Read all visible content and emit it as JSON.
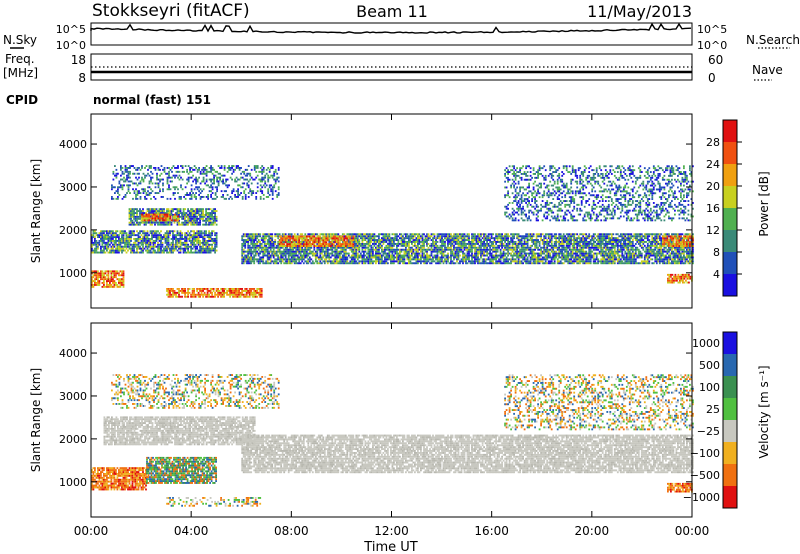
{
  "header": {
    "station": "Stokkseyri (fitACF)",
    "beam": "Beam 11",
    "date": "11/May/2013"
  },
  "top_panels": {
    "nsky_label": "N.Sky",
    "nsearch_label": "N.Search",
    "noise_ticks": [
      "10^5",
      "10^0"
    ],
    "freq_label": "Freq.",
    "freq_unit": "[MHz]",
    "freq_ticks": [
      "18",
      "8"
    ],
    "nave_label": "Nave",
    "nave_ticks": [
      "60",
      "0"
    ],
    "cpid_label": "CPID",
    "cpid_value": "normal (fast) 151"
  },
  "chart_data": [
    {
      "type": "heatmap",
      "panel": "power",
      "ylabel": "Slant Range [km]",
      "ylim": [
        180,
        4700
      ],
      "yticks": [
        1000,
        2000,
        3000,
        4000
      ],
      "xlim": [
        "00:00",
        "24:00"
      ],
      "colorbar": {
        "label": "Power [dB]",
        "ticks": [
          4,
          8,
          12,
          16,
          20,
          24,
          28
        ],
        "range": [
          0,
          32
        ],
        "colors": [
          "#1a10e0",
          "#2050b8",
          "#3a8a78",
          "#50b050",
          "#c8d020",
          "#f0a010",
          "#f05010",
          "#e01010"
        ]
      },
      "echo_regions": [
        {
          "start_h": 0.0,
          "end_h": 1.3,
          "r0": 650,
          "r1": 1050,
          "level": "high"
        },
        {
          "start_h": 0.0,
          "end_h": 5.0,
          "r0": 1450,
          "r1": 1950,
          "level": "mid"
        },
        {
          "start_h": 1.5,
          "end_h": 5.0,
          "r0": 2100,
          "r1": 2500,
          "level": "mid"
        },
        {
          "start_h": 2.0,
          "end_h": 3.5,
          "r0": 2200,
          "r1": 2350,
          "level": "high"
        },
        {
          "start_h": 3.0,
          "end_h": 6.8,
          "r0": 420,
          "r1": 620,
          "level": "high"
        },
        {
          "start_h": 6.0,
          "end_h": 24.0,
          "r0": 1200,
          "r1": 1900,
          "level": "mid"
        },
        {
          "start_h": 7.5,
          "end_h": 10.5,
          "r0": 1600,
          "r1": 1850,
          "level": "high"
        },
        {
          "start_h": 22.8,
          "end_h": 24.0,
          "r0": 1600,
          "r1": 1850,
          "level": "high"
        },
        {
          "start_h": 23.0,
          "end_h": 24.0,
          "r0": 750,
          "r1": 950,
          "level": "high"
        },
        {
          "start_h": 0.8,
          "end_h": 7.5,
          "r0": 2700,
          "r1": 3500,
          "level": "low"
        },
        {
          "start_h": 16.5,
          "end_h": 24.0,
          "r0": 2200,
          "r1": 3500,
          "level": "low"
        }
      ]
    },
    {
      "type": "heatmap",
      "panel": "velocity",
      "ylabel": "Slant Range [km]",
      "ylim": [
        180,
        4700
      ],
      "yticks": [
        1000,
        2000,
        3000,
        4000
      ],
      "xlim": [
        "00:00",
        "24:00"
      ],
      "xticks": [
        "00:00",
        "04:00",
        "08:00",
        "12:00",
        "16:00",
        "20:00",
        "00:00"
      ],
      "xlabel": "Time UT",
      "colorbar": {
        "label": "Velocity [m s⁻¹]",
        "ticks": [
          "1000",
          "500",
          "100",
          "25",
          "−25",
          "−100",
          "−500",
          "−1000"
        ],
        "colors": [
          "#1a10e0",
          "#2868b0",
          "#3a9050",
          "#50c040",
          "#c8c8c0",
          "#f0b020",
          "#f07010",
          "#e01010"
        ]
      },
      "echo_regions": [
        {
          "start_h": 0.0,
          "end_h": 2.2,
          "r0": 800,
          "r1": 1300,
          "level": "neg"
        },
        {
          "start_h": 2.2,
          "end_h": 5.0,
          "r0": 950,
          "r1": 1550,
          "level": "pos"
        },
        {
          "start_h": 0.5,
          "end_h": 6.5,
          "r0": 1850,
          "r1": 2500,
          "level": "grey"
        },
        {
          "start_h": 6.0,
          "end_h": 24.0,
          "r0": 1200,
          "r1": 2100,
          "level": "grey"
        },
        {
          "start_h": 3.0,
          "end_h": 6.8,
          "r0": 420,
          "r1": 620,
          "level": "mix"
        },
        {
          "start_h": 23.0,
          "end_h": 24.0,
          "r0": 750,
          "r1": 950,
          "level": "neg"
        },
        {
          "start_h": 16.5,
          "end_h": 24.0,
          "r0": 2200,
          "r1": 3500,
          "level": "mix"
        },
        {
          "start_h": 0.8,
          "end_h": 7.5,
          "r0": 2700,
          "r1": 3500,
          "level": "mix"
        }
      ]
    }
  ]
}
